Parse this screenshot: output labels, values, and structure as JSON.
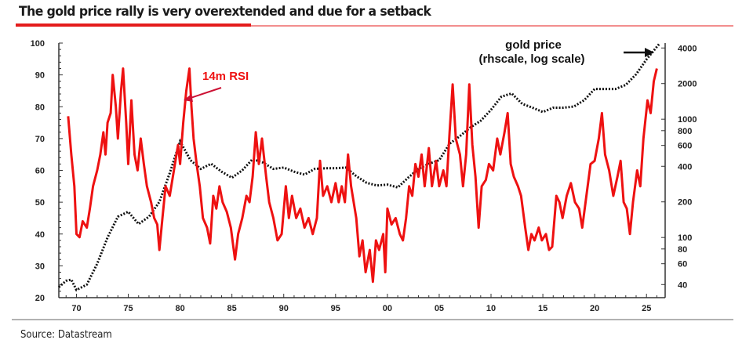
{
  "title": "The gold price rally is very overextended and due for a setback",
  "source": "Source: Datastream",
  "colors": {
    "rsi": "#ee1111",
    "gold": "#111111",
    "accent": "#e41c1c"
  },
  "chart_data": {
    "type": "line",
    "title": "The gold price rally is very overextended and due for a setback",
    "annotations": {
      "rsi": "14m RSI",
      "gold_line1": "gold price",
      "gold_line2": "(rhscale, log scale)"
    },
    "x_ticks": [
      "70",
      "75",
      "80",
      "85",
      "90",
      "95",
      "00",
      "05",
      "10",
      "15",
      "20",
      "25"
    ],
    "x_tick_years": [
      1970,
      1975,
      1980,
      1985,
      1990,
      1995,
      2000,
      2005,
      2010,
      2015,
      2020,
      2025
    ],
    "xlim": [
      1968.3,
      2026.8
    ],
    "y_left": {
      "ticks": [
        "20",
        "30",
        "40",
        "50",
        "60",
        "70",
        "80",
        "90",
        "100"
      ],
      "values": [
        20,
        30,
        40,
        50,
        60,
        70,
        80,
        90,
        100
      ],
      "ylim": [
        20,
        100
      ]
    },
    "y_right": {
      "scale": "log",
      "ticks": [
        "40",
        "60",
        "80",
        "100",
        "200",
        "400",
        "600",
        "800",
        "1000",
        "2000",
        "4000"
      ],
      "values": [
        40,
        60,
        80,
        100,
        200,
        400,
        600,
        800,
        1000,
        2000,
        4000
      ],
      "ylim": [
        31,
        4400
      ]
    },
    "series": [
      {
        "name": "14m RSI",
        "axis": "left",
        "points": [
          [
            1969.2,
            77
          ],
          [
            1969.5,
            65
          ],
          [
            1969.8,
            55
          ],
          [
            1970.0,
            40
          ],
          [
            1970.3,
            39
          ],
          [
            1970.6,
            44
          ],
          [
            1971.0,
            42
          ],
          [
            1971.3,
            48
          ],
          [
            1971.6,
            55
          ],
          [
            1972.0,
            60
          ],
          [
            1972.3,
            65
          ],
          [
            1972.6,
            72
          ],
          [
            1972.8,
            65
          ],
          [
            1973.0,
            75
          ],
          [
            1973.3,
            78
          ],
          [
            1973.5,
            90
          ],
          [
            1973.8,
            80
          ],
          [
            1974.0,
            70
          ],
          [
            1974.3,
            85
          ],
          [
            1974.5,
            92
          ],
          [
            1974.8,
            75
          ],
          [
            1975.0,
            62
          ],
          [
            1975.3,
            82
          ],
          [
            1975.6,
            65
          ],
          [
            1975.9,
            60
          ],
          [
            1976.2,
            70
          ],
          [
            1976.5,
            62
          ],
          [
            1976.8,
            55
          ],
          [
            1977.2,
            50
          ],
          [
            1977.5,
            45
          ],
          [
            1977.8,
            43
          ],
          [
            1978.0,
            35
          ],
          [
            1978.3,
            45
          ],
          [
            1978.6,
            55
          ],
          [
            1979.0,
            52
          ],
          [
            1979.4,
            60
          ],
          [
            1979.8,
            68
          ],
          [
            1980.0,
            62
          ],
          [
            1980.3,
            75
          ],
          [
            1980.6,
            85
          ],
          [
            1980.9,
            92
          ],
          [
            1981.1,
            80
          ],
          [
            1981.3,
            70
          ],
          [
            1981.6,
            62
          ],
          [
            1981.9,
            55
          ],
          [
            1982.2,
            45
          ],
          [
            1982.6,
            42
          ],
          [
            1982.9,
            37
          ],
          [
            1983.2,
            52
          ],
          [
            1983.5,
            48
          ],
          [
            1983.8,
            55
          ],
          [
            1984.1,
            50
          ],
          [
            1984.5,
            47
          ],
          [
            1984.9,
            42
          ],
          [
            1985.3,
            32
          ],
          [
            1985.6,
            40
          ],
          [
            1986.0,
            45
          ],
          [
            1986.4,
            52
          ],
          [
            1986.7,
            50
          ],
          [
            1987.0,
            58
          ],
          [
            1987.3,
            72
          ],
          [
            1987.6,
            62
          ],
          [
            1987.9,
            70
          ],
          [
            1988.3,
            58
          ],
          [
            1988.6,
            50
          ],
          [
            1989.0,
            45
          ],
          [
            1989.4,
            38
          ],
          [
            1989.8,
            40
          ],
          [
            1990.2,
            55
          ],
          [
            1990.5,
            45
          ],
          [
            1990.8,
            52
          ],
          [
            1991.2,
            45
          ],
          [
            1991.6,
            48
          ],
          [
            1992.0,
            42
          ],
          [
            1992.4,
            45
          ],
          [
            1992.8,
            40
          ],
          [
            1993.2,
            45
          ],
          [
            1993.5,
            63
          ],
          [
            1993.8,
            52
          ],
          [
            1994.2,
            55
          ],
          [
            1994.6,
            50
          ],
          [
            1995.0,
            56
          ],
          [
            1995.3,
            50
          ],
          [
            1995.6,
            55
          ],
          [
            1995.9,
            50
          ],
          [
            1996.2,
            65
          ],
          [
            1996.5,
            55
          ],
          [
            1997.0,
            45
          ],
          [
            1997.3,
            33
          ],
          [
            1997.6,
            38
          ],
          [
            1997.9,
            28
          ],
          [
            1998.3,
            35
          ],
          [
            1998.6,
            25
          ],
          [
            1998.9,
            38
          ],
          [
            1999.2,
            35
          ],
          [
            1999.6,
            40
          ],
          [
            1999.8,
            28
          ],
          [
            2000.0,
            48
          ],
          [
            2000.4,
            43
          ],
          [
            2000.8,
            45
          ],
          [
            2001.2,
            40
          ],
          [
            2001.5,
            38
          ],
          [
            2001.8,
            45
          ],
          [
            2002.1,
            55
          ],
          [
            2002.4,
            52
          ],
          [
            2002.7,
            62
          ],
          [
            2003.0,
            58
          ],
          [
            2003.3,
            65
          ],
          [
            2003.6,
            55
          ],
          [
            2004.0,
            67
          ],
          [
            2004.3,
            55
          ],
          [
            2004.7,
            63
          ],
          [
            2005.0,
            55
          ],
          [
            2005.4,
            60
          ],
          [
            2005.7,
            55
          ],
          [
            2006.0,
            72
          ],
          [
            2006.3,
            87
          ],
          [
            2006.6,
            70
          ],
          [
            2007.0,
            65
          ],
          [
            2007.3,
            55
          ],
          [
            2007.6,
            65
          ],
          [
            2007.9,
            87
          ],
          [
            2008.2,
            68
          ],
          [
            2008.5,
            58
          ],
          [
            2008.8,
            42
          ],
          [
            2009.1,
            55
          ],
          [
            2009.5,
            57
          ],
          [
            2009.8,
            62
          ],
          [
            2010.2,
            60
          ],
          [
            2010.6,
            70
          ],
          [
            2010.9,
            65
          ],
          [
            2011.3,
            72
          ],
          [
            2011.6,
            78
          ],
          [
            2011.9,
            62
          ],
          [
            2012.2,
            58
          ],
          [
            2012.6,
            55
          ],
          [
            2012.9,
            52
          ],
          [
            2013.3,
            42
          ],
          [
            2013.6,
            35
          ],
          [
            2013.9,
            40
          ],
          [
            2014.2,
            38
          ],
          [
            2014.6,
            42
          ],
          [
            2014.9,
            38
          ],
          [
            2015.3,
            40
          ],
          [
            2015.6,
            35
          ],
          [
            2015.9,
            36
          ],
          [
            2016.3,
            52
          ],
          [
            2016.6,
            50
          ],
          [
            2016.9,
            45
          ],
          [
            2017.3,
            52
          ],
          [
            2017.7,
            56
          ],
          [
            2018.1,
            50
          ],
          [
            2018.5,
            48
          ],
          [
            2018.8,
            42
          ],
          [
            2019.2,
            52
          ],
          [
            2019.6,
            62
          ],
          [
            2020.0,
            63
          ],
          [
            2020.4,
            70
          ],
          [
            2020.7,
            78
          ],
          [
            2021.0,
            65
          ],
          [
            2021.4,
            60
          ],
          [
            2021.8,
            52
          ],
          [
            2022.2,
            58
          ],
          [
            2022.5,
            63
          ],
          [
            2022.8,
            50
          ],
          [
            2023.1,
            48
          ],
          [
            2023.4,
            40
          ],
          [
            2023.7,
            50
          ],
          [
            2024.1,
            60
          ],
          [
            2024.4,
            55
          ],
          [
            2024.7,
            70
          ],
          [
            2025.1,
            82
          ],
          [
            2025.4,
            78
          ],
          [
            2025.7,
            88
          ],
          [
            2026.0,
            92
          ]
        ]
      },
      {
        "name": "gold price",
        "axis": "right",
        "points": [
          [
            1968.3,
            38
          ],
          [
            1969,
            43
          ],
          [
            1969.5,
            44
          ],
          [
            1970,
            36
          ],
          [
            1971,
            40
          ],
          [
            1972,
            60
          ],
          [
            1973,
            100
          ],
          [
            1974,
            150
          ],
          [
            1975,
            165
          ],
          [
            1976,
            130
          ],
          [
            1977,
            150
          ],
          [
            1978,
            200
          ],
          [
            1979,
            350
          ],
          [
            1980,
            650
          ],
          [
            1981,
            450
          ],
          [
            1982,
            380
          ],
          [
            1983,
            420
          ],
          [
            1984,
            360
          ],
          [
            1985,
            320
          ],
          [
            1986,
            370
          ],
          [
            1987,
            460
          ],
          [
            1988,
            430
          ],
          [
            1989,
            380
          ],
          [
            1990,
            390
          ],
          [
            1991,
            360
          ],
          [
            1992,
            340
          ],
          [
            1993,
            380
          ],
          [
            1994,
            385
          ],
          [
            1995,
            385
          ],
          [
            1996,
            390
          ],
          [
            1997,
            330
          ],
          [
            1998,
            290
          ],
          [
            1999,
            275
          ],
          [
            2000,
            280
          ],
          [
            2001,
            265
          ],
          [
            2002,
            320
          ],
          [
            2003,
            380
          ],
          [
            2004,
            420
          ],
          [
            2005,
            450
          ],
          [
            2006,
            620
          ],
          [
            2007,
            720
          ],
          [
            2008,
            850
          ],
          [
            2009,
            970
          ],
          [
            2010,
            1200
          ],
          [
            2011,
            1550
          ],
          [
            2012,
            1650
          ],
          [
            2013,
            1350
          ],
          [
            2014,
            1250
          ],
          [
            2015,
            1150
          ],
          [
            2016,
            1250
          ],
          [
            2017,
            1250
          ],
          [
            2018,
            1280
          ],
          [
            2019,
            1450
          ],
          [
            2020,
            1800
          ],
          [
            2021,
            1800
          ],
          [
            2022,
            1800
          ],
          [
            2023,
            1950
          ],
          [
            2024,
            2400
          ],
          [
            2025,
            3200
          ],
          [
            2026.2,
            4300
          ]
        ]
      }
    ]
  }
}
